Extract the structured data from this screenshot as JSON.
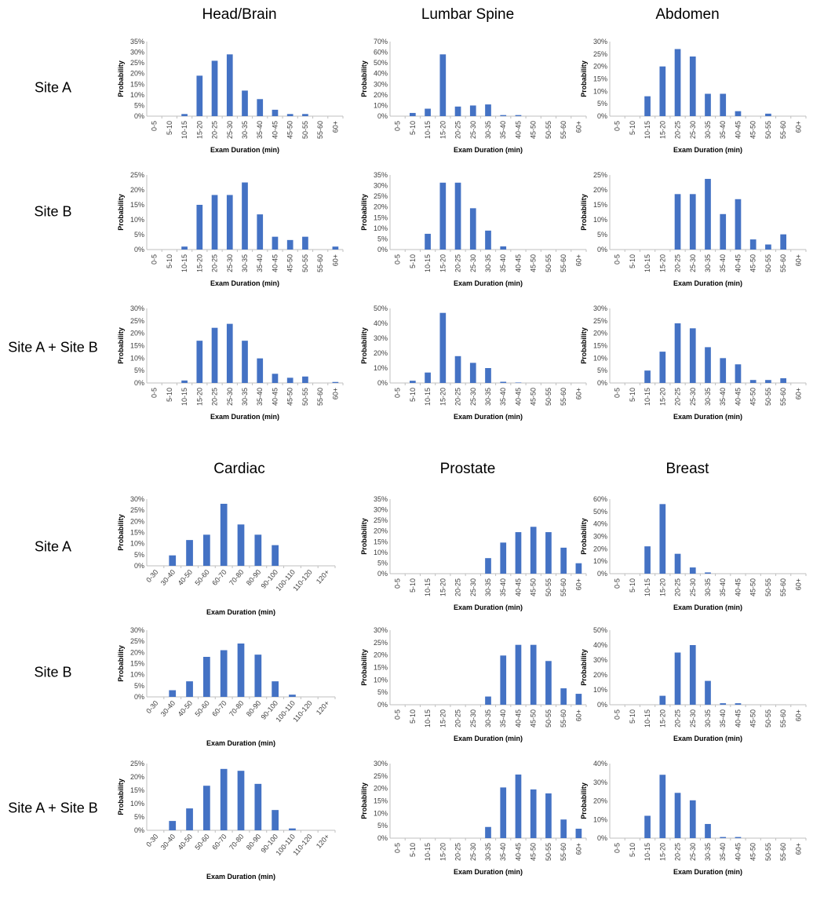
{
  "column_titles_top": [
    "Head/Brain",
    "Lumbar Spine",
    "Abdomen"
  ],
  "column_titles_bottom": [
    "Cardiac",
    "Prostate",
    "Breast"
  ],
  "row_labels": [
    "Site A",
    "Site B",
    "Site A + Site B",
    "Site A",
    "Site B",
    "Site A + Site B"
  ],
  "colors": {
    "bar": "#4472C4",
    "axis": "#BFBFBF"
  },
  "axis_labels": {
    "x": "Exam Duration (min)",
    "y": "Probability"
  },
  "categories": {
    "standard": [
      "0-5",
      "5-10",
      "10-15",
      "15-20",
      "20-25",
      "25-30",
      "30-35",
      "35-40",
      "40-45",
      "45-50",
      "50-55",
      "55-60",
      "60+"
    ],
    "cardiac": [
      "0-30",
      "30-40",
      "40-50",
      "50-60",
      "60-70",
      "70-80",
      "80-90",
      "90-100",
      "100-110",
      "110-120",
      "120+"
    ]
  },
  "chart_data": [
    {
      "type": "bar",
      "title": "Head/Brain",
      "site": "Site A",
      "cats": "standard",
      "values": [
        0,
        0,
        1,
        19,
        26,
        29,
        12,
        8,
        3,
        1,
        1,
        0,
        0
      ],
      "ylim": [
        0,
        35
      ],
      "ystep": 5
    },
    {
      "type": "bar",
      "title": "Lumbar Spine",
      "site": "Site A",
      "cats": "standard",
      "values": [
        0,
        3,
        7,
        58,
        9,
        10,
        11,
        1,
        1,
        0,
        0,
        0,
        0
      ],
      "ylim": [
        0,
        70
      ],
      "ystep": 10
    },
    {
      "type": "bar",
      "title": "Abdomen",
      "site": "Site A",
      "cats": "standard",
      "values": [
        0,
        0,
        8,
        20,
        27,
        24,
        9,
        9,
        2,
        0,
        1,
        0,
        0
      ],
      "ylim": [
        0,
        30
      ],
      "ystep": 5
    },
    {
      "type": "bar",
      "title": "Head/Brain",
      "site": "Site B",
      "cats": "standard",
      "values": [
        0,
        0,
        1,
        15,
        18.3,
        18.3,
        22.5,
        11.8,
        4.3,
        3.2,
        4.3,
        0,
        1
      ],
      "ylim": [
        0,
        25
      ],
      "ystep": 5
    },
    {
      "type": "bar",
      "title": "Lumbar Spine",
      "site": "Site B",
      "cats": "standard",
      "values": [
        0,
        0,
        7.4,
        31.4,
        31.4,
        19.4,
        8.9,
        1.5,
        0,
        0,
        0,
        0,
        0
      ],
      "ylim": [
        0,
        35
      ],
      "ystep": 5
    },
    {
      "type": "bar",
      "title": "Abdomen",
      "site": "Site B",
      "cats": "standard",
      "values": [
        0,
        0,
        0,
        0,
        18.6,
        18.6,
        23.7,
        11.9,
        16.9,
        3.4,
        1.7,
        5.1,
        0
      ],
      "ylim": [
        0,
        25
      ],
      "ystep": 5
    },
    {
      "type": "bar",
      "title": "Head/Brain",
      "site": "Site A + Site B",
      "cats": "standard",
      "values": [
        0,
        0,
        1,
        17,
        22.2,
        23.8,
        17,
        9.9,
        3.7,
        2.1,
        2.6,
        0,
        0.4
      ],
      "ylim": [
        0,
        30
      ],
      "ystep": 5
    },
    {
      "type": "bar",
      "title": "Lumbar Spine",
      "site": "Site A + Site B",
      "cats": "standard",
      "values": [
        0,
        1.5,
        7,
        47,
        18,
        13.5,
        10,
        0.8,
        0.3,
        0,
        0,
        0,
        0
      ],
      "ylim": [
        0,
        50
      ],
      "ystep": 10
    },
    {
      "type": "bar",
      "title": "Abdomen",
      "site": "Site A + Site B",
      "cats": "standard",
      "values": [
        0,
        0,
        5,
        12.6,
        24,
        22,
        14.4,
        10,
        7.5,
        1.2,
        1.2,
        1.9,
        0
      ],
      "ylim": [
        0,
        30
      ],
      "ystep": 5
    },
    {
      "type": "bar",
      "title": "Cardiac",
      "site": "Site A",
      "cats": "cardiac",
      "values": [
        0,
        4.7,
        11.6,
        14,
        27.9,
        18.6,
        14,
        9.3,
        0,
        0,
        0
      ],
      "ylim": [
        0,
        30
      ],
      "ystep": 5
    },
    {
      "type": "bar",
      "title": "Prostate",
      "site": "Site A",
      "cats": "standard",
      "values": [
        0,
        0,
        0,
        0,
        0,
        0,
        7.3,
        14.6,
        19.5,
        22,
        19.5,
        12.2,
        4.9
      ],
      "ylim": [
        0,
        35
      ],
      "ystep": 5
    },
    {
      "type": "bar",
      "title": "Breast",
      "site": "Site A",
      "cats": "standard",
      "values": [
        0,
        0,
        22,
        56,
        16,
        5,
        1,
        0,
        0,
        0,
        0,
        0,
        0
      ],
      "ylim": [
        0,
        60
      ],
      "ystep": 10
    },
    {
      "type": "bar",
      "title": "Cardiac",
      "site": "Site B",
      "cats": "cardiac",
      "values": [
        0,
        3,
        7,
        18,
        21,
        24,
        19,
        7,
        1,
        0,
        0
      ],
      "ylim": [
        0,
        30
      ],
      "ystep": 5
    },
    {
      "type": "bar",
      "title": "Prostate",
      "site": "Site B",
      "cats": "standard",
      "values": [
        0,
        0,
        0,
        0,
        0,
        0,
        3.3,
        19.8,
        24.1,
        24.1,
        17.6,
        6.6,
        4.4
      ],
      "ylim": [
        0,
        30
      ],
      "ystep": 5
    },
    {
      "type": "bar",
      "title": "Breast",
      "site": "Site B",
      "cats": "standard",
      "values": [
        0,
        0,
        0,
        6,
        35,
        40,
        16,
        1,
        1,
        0,
        0,
        0,
        0
      ],
      "ylim": [
        0,
        50
      ],
      "ystep": 10
    },
    {
      "type": "bar",
      "title": "Cardiac",
      "site": "Site A + Site B",
      "cats": "cardiac",
      "values": [
        0,
        3.5,
        8.2,
        16.7,
        23,
        22.3,
        17.4,
        7.6,
        0.7,
        0,
        0
      ],
      "ylim": [
        0,
        25
      ],
      "ystep": 5
    },
    {
      "type": "bar",
      "title": "Prostate",
      "site": "Site A + Site B",
      "cats": "standard",
      "values": [
        0,
        0,
        0,
        0,
        0,
        0,
        4.5,
        20.4,
        25.6,
        19.6,
        18,
        7.5,
        3.8
      ],
      "ylim": [
        0,
        30
      ],
      "ystep": 5
    },
    {
      "type": "bar",
      "title": "Breast",
      "site": "Site A + Site B",
      "cats": "standard",
      "values": [
        0,
        0,
        12,
        34,
        24.3,
        20.3,
        7.6,
        0.6,
        0.6,
        0,
        0,
        0,
        0
      ],
      "ylim": [
        0,
        40
      ],
      "ystep": 10
    }
  ]
}
